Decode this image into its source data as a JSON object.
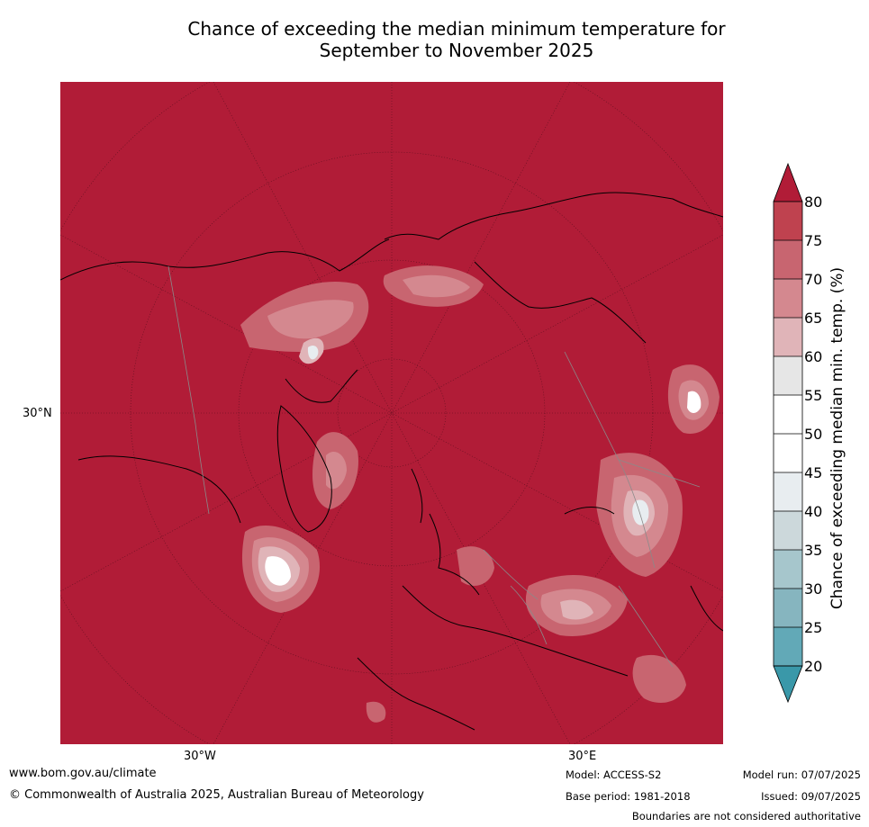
{
  "title": {
    "line1": "Chance of exceeding the median minimum temperature for",
    "line2": "September to November 2025"
  },
  "map": {
    "axis_labels": {
      "lat_30n": "30°N",
      "lon_30w": "30°W",
      "lon_30e": "30°E"
    },
    "background_color": "#b11c37"
  },
  "colorbar": {
    "title": "Chance of exceeding median min. temp. (%)",
    "ticks": [
      "80",
      "75",
      "70",
      "65",
      "60",
      "55",
      "50",
      "45",
      "40",
      "35",
      "30",
      "25",
      "20"
    ],
    "colors": {
      "above_80": "#b11c37",
      "75_80": "#bf424f",
      "70_75": "#c86570",
      "65_70": "#d4888f",
      "60_65": "#e0b4b8",
      "55_60": "#e6e6e6",
      "50_55": "#ffffff",
      "45_50": "#ffffff",
      "40_45": "#e8edf0",
      "35_40": "#ccd8db",
      "30_35": "#a6c6cc",
      "25_30": "#86b5bf",
      "20_25": "#62a9b7",
      "below_20": "#3a98a9"
    }
  },
  "footer": {
    "website": "www.bom.gov.au/climate",
    "copyright": "© Commonwealth of Australia 2025, Australian Bureau of Meteorology",
    "model": "Model: ACCESS-S2",
    "base_period": "Base period: 1981-2018",
    "model_run": "Model run: 07/07/2025",
    "issued": "Issued: 09/07/2025",
    "disclaimer": "Boundaries are not considered authoritative"
  }
}
